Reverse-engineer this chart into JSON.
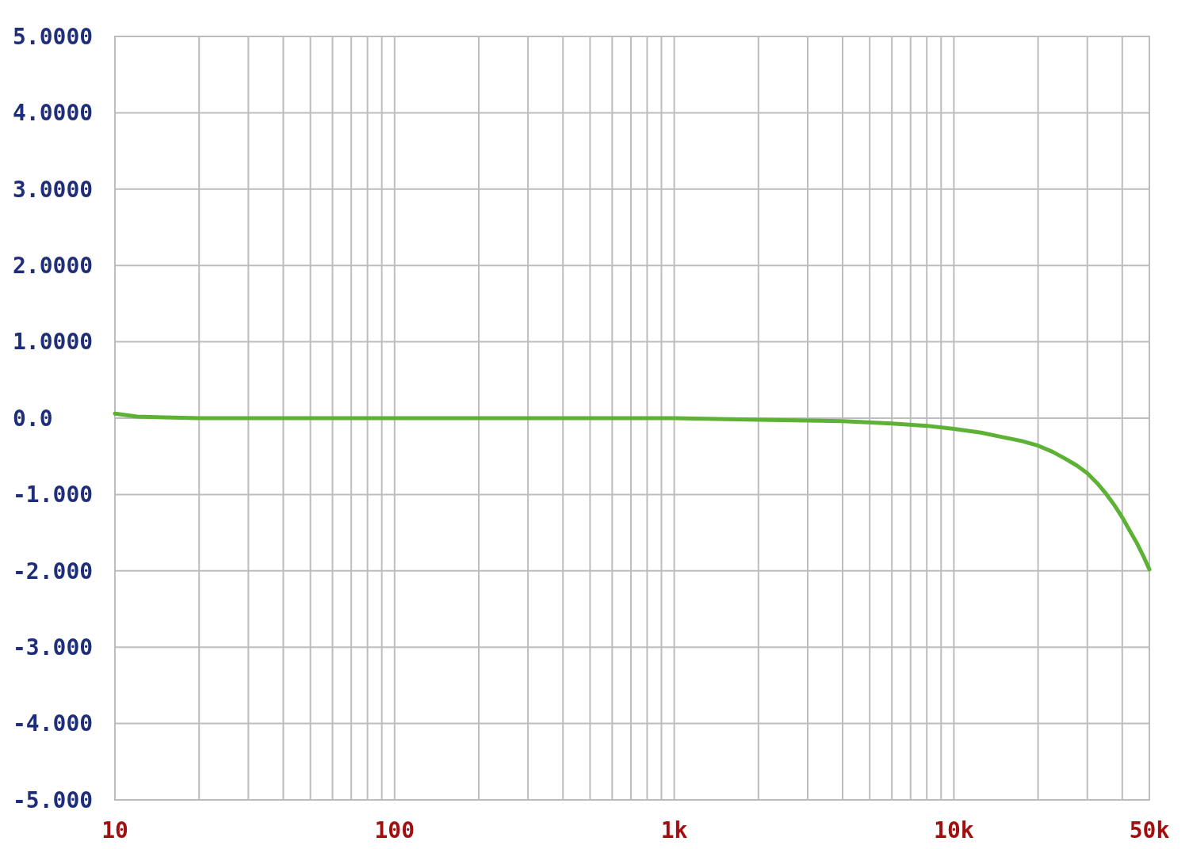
{
  "chart_data": {
    "type": "line",
    "log": "x",
    "grid": true,
    "marker": "none",
    "line_style": "solid",
    "x": [
      10,
      12,
      15,
      20,
      50,
      100,
      500,
      1000,
      2000,
      3000,
      4000,
      6000,
      8000,
      10000,
      12500,
      15000,
      17500,
      20000,
      22500,
      25000,
      27500,
      30000,
      32500,
      35000,
      37500,
      40000,
      42500,
      45000,
      47500,
      50000
    ],
    "series": [
      {
        "color": "#5db135",
        "values": [
          0.06,
          0.02,
          0.01,
          0.0,
          0.0,
          0.0,
          0.0,
          0.0,
          -0.02,
          -0.03,
          -0.04,
          -0.07,
          -0.1,
          -0.14,
          -0.19,
          -0.25,
          -0.3,
          -0.36,
          -0.44,
          -0.53,
          -0.62,
          -0.72,
          -0.85,
          -0.99,
          -1.14,
          -1.3,
          -1.47,
          -1.63,
          -1.8,
          -1.98
        ]
      }
    ],
    "xlim": [
      10,
      50000
    ],
    "xticks": [
      {
        "value": 10,
        "label": "10"
      },
      {
        "value": 20,
        "label": null
      },
      {
        "value": 30,
        "label": null
      },
      {
        "value": 40,
        "label": null
      },
      {
        "value": 50,
        "label": null
      },
      {
        "value": 60,
        "label": null
      },
      {
        "value": 70,
        "label": null
      },
      {
        "value": 80,
        "label": null
      },
      {
        "value": 90,
        "label": null
      },
      {
        "value": 100,
        "label": "100"
      },
      {
        "value": 200,
        "label": null
      },
      {
        "value": 300,
        "label": null
      },
      {
        "value": 400,
        "label": null
      },
      {
        "value": 500,
        "label": null
      },
      {
        "value": 600,
        "label": null
      },
      {
        "value": 700,
        "label": null
      },
      {
        "value": 800,
        "label": null
      },
      {
        "value": 900,
        "label": null
      },
      {
        "value": 1000,
        "label": "1k"
      },
      {
        "value": 2000,
        "label": null
      },
      {
        "value": 3000,
        "label": null
      },
      {
        "value": 4000,
        "label": null
      },
      {
        "value": 5000,
        "label": null
      },
      {
        "value": 6000,
        "label": null
      },
      {
        "value": 7000,
        "label": null
      },
      {
        "value": 8000,
        "label": null
      },
      {
        "value": 9000,
        "label": null
      },
      {
        "value": 10000,
        "label": "10k"
      },
      {
        "value": 20000,
        "label": null
      },
      {
        "value": 30000,
        "label": null
      },
      {
        "value": 40000,
        "label": null
      },
      {
        "value": 50000,
        "label": "50k"
      }
    ],
    "ylim": [
      -5,
      5
    ],
    "yticks": [
      {
        "value": 5,
        "label": "5.0000"
      },
      {
        "value": 4,
        "label": "4.0000"
      },
      {
        "value": 3,
        "label": "3.0000"
      },
      {
        "value": 2,
        "label": "2.0000"
      },
      {
        "value": 1,
        "label": "1.0000"
      },
      {
        "value": 0,
        "label": "0.0"
      },
      {
        "value": -1,
        "label": "-1.000"
      },
      {
        "value": -2,
        "label": "-2.000"
      },
      {
        "value": -3,
        "label": "-3.000"
      },
      {
        "value": -4,
        "label": "-4.000"
      },
      {
        "value": -5,
        "label": "-5.000"
      }
    ]
  }
}
